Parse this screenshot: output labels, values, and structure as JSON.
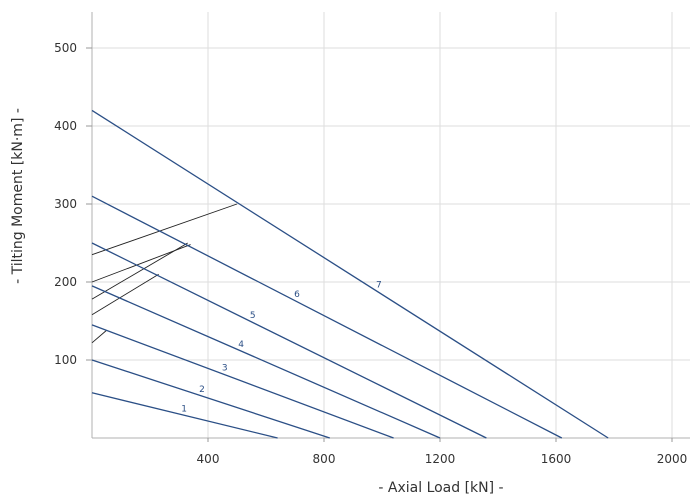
{
  "chart_data": {
    "type": "line",
    "title": "",
    "xlabel": "- Axial Load [kN] -",
    "ylabel": "- Tilting Moment [kN·m] -",
    "xlim": [
      0,
      2000
    ],
    "ylim": [
      0,
      500
    ],
    "x_ticks": [
      400,
      800,
      1200,
      1600,
      2000
    ],
    "y_ticks": [
      100,
      200,
      300,
      400,
      500
    ],
    "grid": true,
    "legend": "none",
    "line_color": "#2b4f86",
    "series": [
      {
        "name": "1",
        "points": [
          [
            0,
            58
          ],
          [
            640,
            0
          ]
        ]
      },
      {
        "name": "2",
        "points": [
          [
            0,
            100
          ],
          [
            820,
            0
          ]
        ]
      },
      {
        "name": "3",
        "points": [
          [
            0,
            145
          ],
          [
            1040,
            0
          ]
        ]
      },
      {
        "name": "4",
        "points": [
          [
            0,
            195
          ],
          [
            1200,
            0
          ]
        ]
      },
      {
        "name": "5",
        "points": [
          [
            0,
            250
          ],
          [
            1360,
            0
          ]
        ]
      },
      {
        "name": "6",
        "points": [
          [
            0,
            310
          ],
          [
            1620,
            0
          ]
        ]
      },
      {
        "name": "7",
        "points": [
          [
            0,
            420
          ],
          [
            1780,
            0
          ]
        ]
      }
    ],
    "connector_lines": [
      {
        "points": [
          [
            0,
            122
          ],
          [
            50,
            138
          ]
        ]
      },
      {
        "points": [
          [
            0,
            158
          ],
          [
            230,
            210
          ]
        ]
      },
      {
        "points": [
          [
            0,
            178
          ],
          [
            330,
            250
          ]
        ]
      },
      {
        "points": [
          [
            0,
            200
          ],
          [
            340,
            248
          ]
        ]
      },
      {
        "points": [
          [
            0,
            235
          ],
          [
            500,
            300
          ]
        ]
      }
    ]
  }
}
